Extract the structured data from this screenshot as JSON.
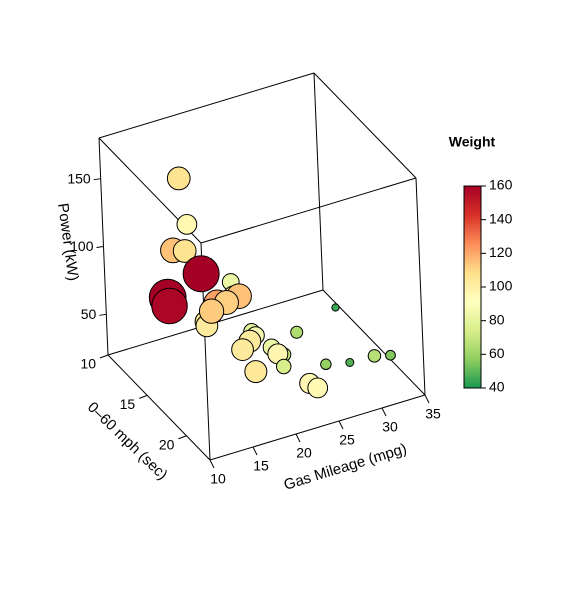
{
  "chart_data": {
    "type": "scatter3d",
    "x_label": "Gas Mileage (mpg)",
    "y_label": "0–60 mph (sec)",
    "z_label": "Power (kW)",
    "legend_title": "Weight",
    "xlim": [
      10,
      35
    ],
    "xticks": [
      10,
      15,
      20,
      25,
      30,
      35
    ],
    "ylim": [
      10,
      23
    ],
    "yticks": [
      10,
      15,
      20
    ],
    "zlim": [
      20,
      180
    ],
    "zticks": [
      50,
      100,
      150
    ],
    "weight_lim": [
      40,
      160
    ],
    "weight_ticks": [
      40,
      60,
      80,
      100,
      120,
      140,
      160
    ],
    "colors": [
      "#1a9850",
      "#91cf60",
      "#d9ef8b",
      "#ffffbf",
      "#fee08b",
      "#fc8d59",
      "#d73027",
      "#a50026"
    ],
    "x": [
      21.0,
      21.0,
      22.8,
      21.4,
      18.7,
      18.1,
      14.3,
      24.4,
      22.8,
      19.2,
      17.8,
      16.4,
      17.3,
      15.2,
      10.4,
      10.4,
      14.7,
      32.4,
      30.4,
      33.9,
      21.5,
      15.5,
      15.2,
      13.3,
      19.2,
      27.3,
      26.0,
      30.4,
      15.8,
      19.7,
      15.0,
      21.4
    ],
    "y": [
      16.5,
      17.0,
      18.6,
      19.4,
      17.0,
      20.2,
      15.8,
      20.0,
      22.9,
      18.3,
      18.9,
      17.4,
      17.6,
      18.0,
      18.0,
      17.8,
      17.4,
      19.5,
      18.5,
      19.9,
      20.0,
      16.9,
      17.3,
      15.4,
      17.1,
      18.9,
      16.7,
      16.9,
      14.5,
      15.5,
      14.6,
      18.6
    ],
    "z": [
      55,
      55,
      47,
      55,
      88,
      53,
      123,
      31,
      48,
      62,
      62,
      90,
      90,
      90,
      103,
      108,
      115,
      33,
      26,
      33,
      49,
      75,
      75,
      123,
      88,
      33,
      46,
      57,
      132,
      88,
      168,
      55
    ],
    "weight": [
      79,
      86,
      70,
      96,
      103,
      104,
      107,
      96,
      95,
      103,
      103,
      122,
      112,
      113,
      158,
      163,
      160,
      66,
      48,
      55,
      74,
      106,
      103,
      115,
      115,
      58,
      64,
      45,
      95,
      83,
      107,
      83
    ]
  }
}
